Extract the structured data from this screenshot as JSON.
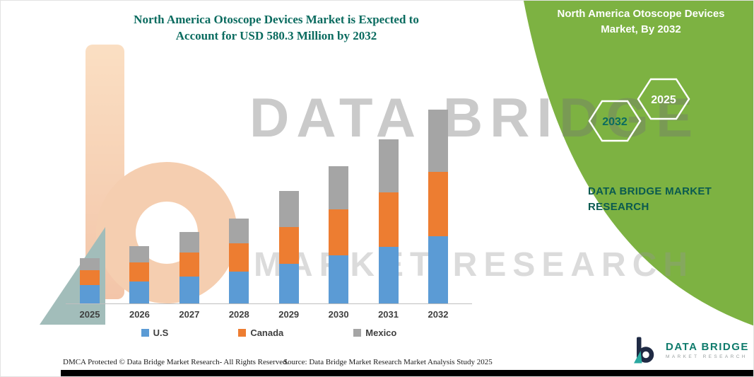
{
  "header": {
    "title_line1": "North America Otoscope Devices Market is Expected to",
    "title_line2": "Account for USD 580.3 Million by 2032"
  },
  "side_panel": {
    "title_line1": "North America Otoscope Devices",
    "title_line2": "Market, By 2032",
    "hexagon_back_label": "2032",
    "hexagon_front_label": "2025",
    "brand_line1": "DATA BRIDGE MARKET",
    "brand_line2": "RESEARCH"
  },
  "watermark": {
    "line1": "DATA BRIDGE",
    "line2": "MARKET RESEARCH"
  },
  "chart_data": {
    "type": "bar",
    "stacked": true,
    "title": "North America Otoscope Devices Market is Expected to Account for USD 580.3 Million by 2032",
    "unit": "USD Million",
    "categories": [
      "2025",
      "2026",
      "2027",
      "2028",
      "2029",
      "2030",
      "2031",
      "2032"
    ],
    "series": [
      {
        "name": "U.S",
        "color": "#5B9BD5",
        "values": [
          55,
          65,
          80,
          95,
          118,
          145,
          170,
          202.3
        ]
      },
      {
        "name": "Canada",
        "color": "#ED7D31",
        "values": [
          45,
          58,
          72,
          85,
          110,
          138,
          163,
          192
        ]
      },
      {
        "name": "Mexico",
        "color": "#A5A5A5",
        "values": [
          35,
          48,
          62,
          75,
          108,
          130,
          158,
          186
        ]
      }
    ],
    "ylim": [
      0,
      600
    ],
    "grid": false,
    "legend_position": "bottom"
  },
  "footer": {
    "dmca": "DMCA Protected © Data Bridge Market Research-  All Rights Reserved.",
    "source": "Source: Data Bridge Market Research  Market Analysis Study 2025"
  },
  "logo": {
    "brand": "DATA BRIDGE",
    "tagline": "MARKET RESEARCH"
  },
  "colors": {
    "accent_teal": "#0A6B5F",
    "panel_green": "#7DB242",
    "us_blue": "#5B9BD5",
    "canada_orange": "#ED7D31",
    "mexico_gray": "#A5A5A5"
  }
}
